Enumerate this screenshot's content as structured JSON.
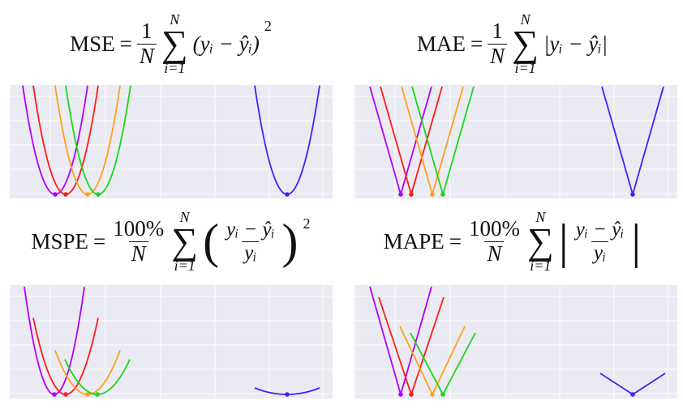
{
  "panels": [
    {
      "name": "MSE",
      "equals": "=",
      "numerator": "1",
      "denominator": "N",
      "sum_upper": "N",
      "sum": "∑",
      "sum_lower": "i=1",
      "body": "(yᵢ − ŷᵢ)",
      "exponent": "2"
    },
    {
      "name": "MAE",
      "equals": "=",
      "numerator": "1",
      "denominator": "N",
      "sum_upper": "N",
      "sum": "∑",
      "sum_lower": "i=1",
      "body": "|yᵢ − ŷᵢ|"
    },
    {
      "name": "MSPE",
      "equals": "=",
      "numerator": "100%",
      "denominator": "N",
      "sum_upper": "N",
      "sum": "∑",
      "sum_lower": "i=1",
      "open": "(",
      "inner_numerator": "yᵢ − ŷᵢ",
      "inner_denominator": "yᵢ",
      "close": ")",
      "exponent": "2"
    },
    {
      "name": "MAPE",
      "equals": "=",
      "numerator": "100%",
      "denominator": "N",
      "sum_upper": "N",
      "sum": "∑",
      "sum_lower": "i=1",
      "open": "|",
      "inner_numerator": "yᵢ − ŷᵢ",
      "inner_denominator": "yᵢ",
      "close": "|"
    }
  ]
}
